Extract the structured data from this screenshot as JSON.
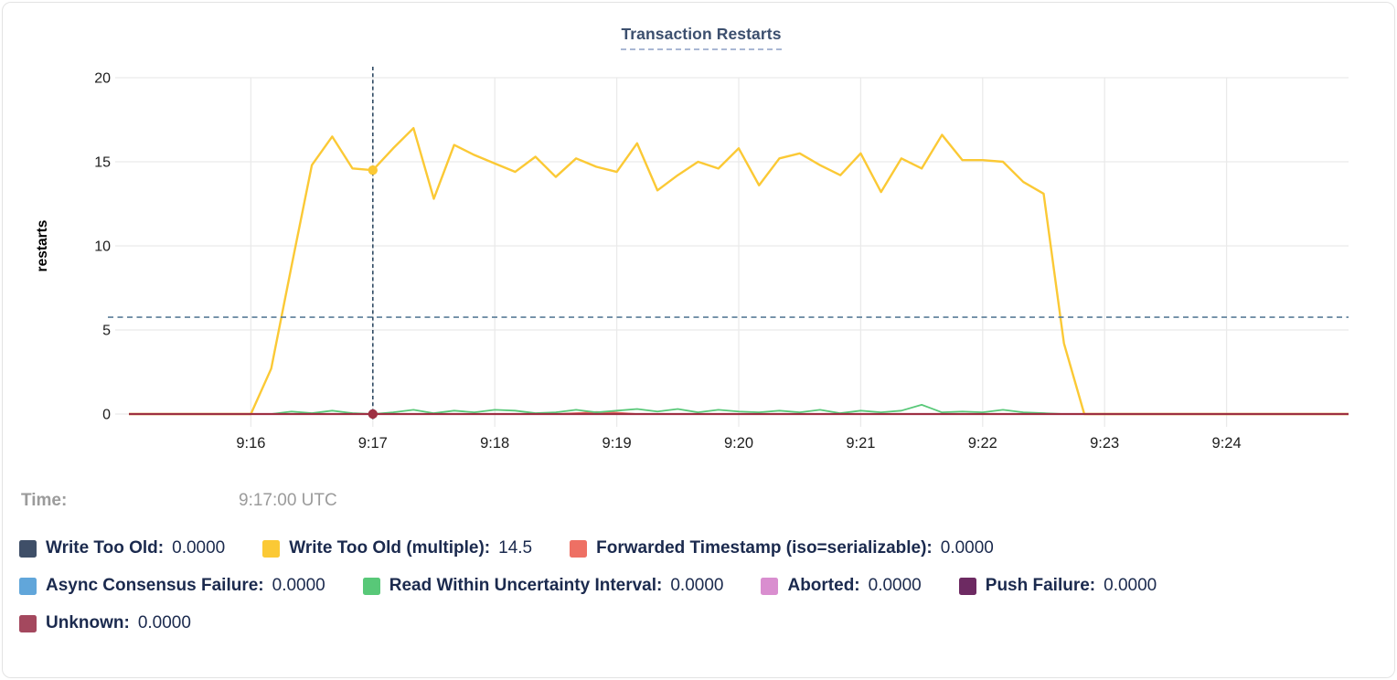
{
  "hover_readout": {
    "label": "Time:",
    "value": "9:17:00 UTC"
  },
  "chart_data": {
    "type": "line",
    "title": "Transaction Restarts",
    "xlabel": "",
    "ylabel": "restarts",
    "x_start_time": "9:15:00",
    "x_step_seconds": 10,
    "x_domain_seconds": [
      0,
      600
    ],
    "ylim": [
      0,
      20
    ],
    "y_ticks": [
      0,
      5,
      10,
      15,
      20
    ],
    "x_ticks": [
      {
        "seconds": 60,
        "label": "9:16"
      },
      {
        "seconds": 120,
        "label": "9:17"
      },
      {
        "seconds": 180,
        "label": "9:18"
      },
      {
        "seconds": 240,
        "label": "9:19"
      },
      {
        "seconds": 300,
        "label": "9:20"
      },
      {
        "seconds": 360,
        "label": "9:21"
      },
      {
        "seconds": 420,
        "label": "9:22"
      },
      {
        "seconds": 480,
        "label": "9:23"
      },
      {
        "seconds": 540,
        "label": "9:24"
      }
    ],
    "grid": true,
    "legend_position": "bottom",
    "crosshair": {
      "time_label": "9:17:00 UTC",
      "x_seconds": 120,
      "guide_value": 5.76,
      "points": [
        {
          "series": "Write Too Old (multiple)",
          "value": 14.5
        },
        {
          "series": "Unknown",
          "value": 0
        }
      ]
    },
    "series": [
      {
        "name": "Write Too Old",
        "color": "#3f4f68",
        "z": 0,
        "constant": 0
      },
      {
        "name": "Write Too Old (multiple)",
        "color": "#fbc935",
        "z": 6,
        "values": [
          0,
          0,
          0,
          0,
          0,
          0,
          0,
          2.7,
          8.8,
          14.8,
          16.5,
          14.6,
          14.5,
          15.8,
          17,
          12.8,
          16,
          15.4,
          14.9,
          14.4,
          15.3,
          14.1,
          15.2,
          14.7,
          14.4,
          16.1,
          13.3,
          14.2,
          15,
          14.6,
          15.8,
          13.6,
          15.2,
          15.5,
          14.8,
          14.2,
          15.5,
          13.2,
          15.2,
          14.6,
          16.6,
          15.1,
          15.1,
          15,
          13.8,
          13.1,
          4.2,
          0,
          0,
          0,
          0,
          0,
          0,
          0,
          0,
          0,
          0,
          0,
          0,
          0,
          0
        ]
      },
      {
        "name": "Forwarded Timestamp (iso=serializable)",
        "color": "#ee7064",
        "z": 4,
        "values": [
          0,
          0,
          0,
          0,
          0,
          0,
          0,
          0,
          0,
          0,
          0,
          0,
          0,
          0,
          0,
          0,
          0,
          0,
          0,
          0,
          0,
          0,
          0.05,
          0.12,
          0.08,
          0,
          0,
          0,
          0,
          0,
          0,
          0,
          0,
          0,
          0,
          0,
          0,
          0,
          0,
          0,
          0,
          0,
          0,
          0,
          0,
          0,
          0,
          0,
          0,
          0,
          0,
          0,
          0,
          0,
          0,
          0,
          0,
          0,
          0,
          0,
          0
        ]
      },
      {
        "name": "Async Consensus Failure",
        "color": "#61a6da",
        "z": 1,
        "constant": 0
      },
      {
        "name": "Read Within Uncertainty Interval",
        "color": "#58c878",
        "z": 5,
        "values": [
          0,
          0,
          0,
          0,
          0,
          0,
          0,
          0,
          0.15,
          0.05,
          0.2,
          0.05,
          0,
          0.1,
          0.25,
          0.05,
          0.2,
          0.1,
          0.25,
          0.2,
          0.05,
          0.1,
          0.25,
          0.1,
          0.2,
          0.3,
          0.15,
          0.3,
          0.1,
          0.25,
          0.15,
          0.1,
          0.2,
          0.1,
          0.25,
          0.05,
          0.2,
          0.1,
          0.2,
          0.55,
          0.1,
          0.15,
          0.1,
          0.25,
          0.1,
          0.05,
          0,
          0,
          0,
          0,
          0,
          0,
          0,
          0,
          0,
          0,
          0,
          0,
          0,
          0,
          0
        ]
      },
      {
        "name": "Aborted",
        "color": "#d98ecf",
        "z": 2,
        "constant": 0
      },
      {
        "name": "Push Failure",
        "color": "#6d2a62",
        "z": 3,
        "constant": 0
      },
      {
        "name": "Unknown",
        "color": "#9e3043",
        "z": 7,
        "constant": 0
      }
    ]
  },
  "legend": {
    "rows": [
      [
        {
          "label": "Write Too Old:",
          "value": "0.0000",
          "color": "#3f4f68"
        },
        {
          "label": "Write Too Old (multiple):",
          "value": "14.5",
          "color": "#fbc935"
        },
        {
          "label": "Forwarded Timestamp (iso=serializable):",
          "value": "0.0000",
          "color": "#ee7064"
        }
      ],
      [
        {
          "label": "Async Consensus Failure:",
          "value": "0.0000",
          "color": "#61a6da"
        },
        {
          "label": "Read Within Uncertainty Interval:",
          "value": "0.0000",
          "color": "#58c878"
        },
        {
          "label": "Aborted:",
          "value": "0.0000",
          "color": "#d98ecf"
        },
        {
          "label": "Push Failure:",
          "value": "0.0000",
          "color": "#6d2a62"
        }
      ],
      [
        {
          "label": "Unknown:",
          "value": "0.0000",
          "color": "#a4485e"
        }
      ]
    ]
  },
  "style": {
    "grid_color": "#eaeaea",
    "axis_text_color": "#1d1d1d",
    "crosshair_vertical_color": "#2f4a63",
    "crosshair_horizontal_color": "#5a7d98"
  }
}
